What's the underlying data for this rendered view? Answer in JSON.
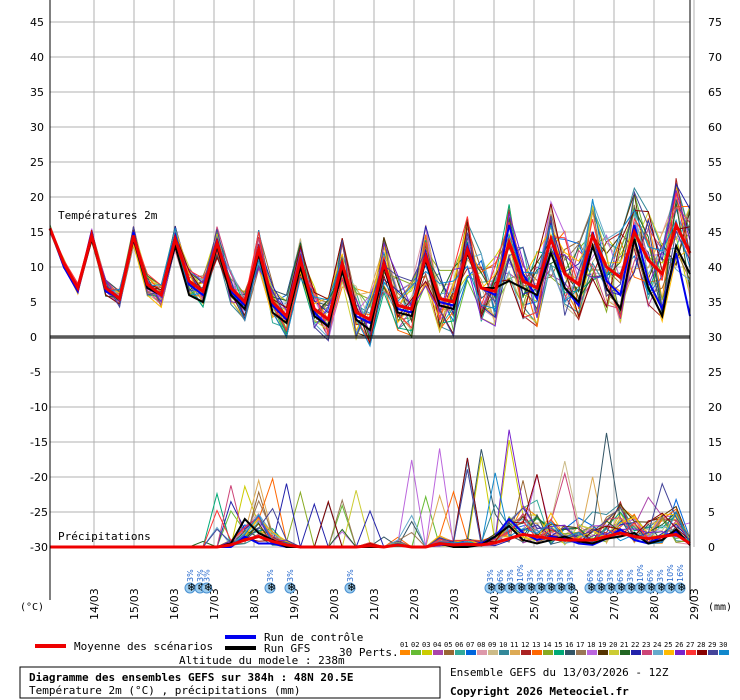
{
  "chart_data": {
    "type": "line",
    "left_unit": "(°C)",
    "right_unit": "(mm)",
    "temp_label": "Températures 2m",
    "precip_label": "Précipitations",
    "ylim_temp": [
      -30,
      45
    ],
    "ylim_precip": [
      0,
      75
    ],
    "left_ticks": [
      "45",
      "40",
      "35",
      "30",
      "25",
      "20",
      "15",
      "10",
      "5",
      "0",
      "-5",
      "-10",
      "-15",
      "-20",
      "-25",
      "-30"
    ],
    "right_ticks": [
      "75",
      "70",
      "65",
      "60",
      "55",
      "50",
      "45",
      "40",
      "35",
      "30",
      "25",
      "20",
      "15",
      "10",
      "5",
      "0"
    ],
    "x_labels": [
      "14/03",
      "15/03",
      "16/03",
      "17/03",
      "18/03",
      "19/03",
      "20/03",
      "21/03",
      "22/03",
      "23/03",
      "24/03",
      "25/03",
      "26/03",
      "27/03",
      "28/03",
      "29/03"
    ],
    "snow_markers": [
      {
        "t": 42,
        "label": "3%"
      },
      {
        "t": 45,
        "label": "3%"
      },
      {
        "t": 47,
        "label": "3%"
      },
      {
        "t": 66,
        "label": "3%"
      },
      {
        "t": 72,
        "label": "3%"
      },
      {
        "t": 90,
        "label": "3%"
      },
      {
        "t": 132,
        "label": "3%"
      },
      {
        "t": 135,
        "label": "6%"
      },
      {
        "t": 138,
        "label": "3%"
      },
      {
        "t": 141,
        "label": "10%"
      },
      {
        "t": 144,
        "label": "3%"
      },
      {
        "t": 147,
        "label": "3%"
      },
      {
        "t": 150,
        "label": "3%"
      },
      {
        "t": 153,
        "label": "3%"
      },
      {
        "t": 156,
        "label": "3%"
      },
      {
        "t": 162,
        "label": "6%"
      },
      {
        "t": 165,
        "label": "6%"
      },
      {
        "t": 168,
        "label": "3%"
      },
      {
        "t": 171,
        "label": "6%"
      },
      {
        "t": 174,
        "label": "3%"
      },
      {
        "t": 177,
        "label": "10%"
      },
      {
        "t": 180,
        "label": "6%"
      },
      {
        "t": 183,
        "label": "3%"
      },
      {
        "t": 186,
        "label": "10%"
      },
      {
        "t": 189,
        "label": "16%"
      }
    ],
    "series": [
      {
        "name": "Moyenne des scénarios",
        "color": "#ee0000",
        "temp": [
          15.5,
          10.5,
          7,
          14.5,
          7,
          5.5,
          14.5,
          7.5,
          6,
          14,
          8,
          6.5,
          13.5,
          7,
          5,
          12.5,
          5,
          3,
          11,
          4,
          2.5,
          10.5,
          3.5,
          2.5,
          10.5,
          4.5,
          4,
          11.5,
          5.5,
          5,
          12.5,
          7,
          6.5,
          13.5,
          8,
          7,
          14,
          9,
          7.5,
          14.5,
          10,
          8.5,
          15,
          11,
          9,
          16,
          12
        ],
        "precip": [
          0,
          0,
          0,
          0,
          0,
          0,
          0,
          0,
          0,
          0,
          0,
          0,
          0,
          0.3,
          1,
          1.5,
          0.8,
          0.3,
          0,
          0,
          0,
          0,
          0,
          0.2,
          0,
          0.3,
          0,
          0,
          0.5,
          0.3,
          0.4,
          0.3,
          0.6,
          1.2,
          1.8,
          1.5,
          1.2,
          1,
          1,
          1,
          1.5,
          2,
          1.5,
          1.2,
          1.5,
          1.8,
          0.5
        ]
      },
      {
        "name": "Run de contrôle",
        "color": "#0000ee",
        "temp": [
          15.5,
          10,
          6.5,
          15,
          6.5,
          5.5,
          15,
          7,
          6,
          14.5,
          7.5,
          6,
          14,
          6.5,
          4.5,
          12.5,
          4.5,
          2.5,
          11,
          3.5,
          1.5,
          10.5,
          3,
          2,
          11,
          4,
          3.5,
          12,
          5,
          4.5,
          13,
          7,
          6,
          16,
          9,
          5.5,
          14,
          7,
          4.5,
          15,
          8,
          6,
          16,
          8,
          4,
          12,
          3
        ],
        "precip": [
          0,
          0,
          0,
          0,
          0,
          0,
          0,
          0,
          0,
          0,
          0,
          0,
          0,
          0,
          1.5,
          0.5,
          0.5,
          0,
          0,
          0,
          0,
          0,
          0,
          0,
          0,
          0.3,
          0,
          0,
          0.5,
          0.2,
          0.3,
          0.5,
          1.5,
          4,
          2,
          1,
          1.5,
          1.2,
          0.5,
          0.3,
          1.2,
          2.5,
          1,
          0.5,
          1.5,
          2.2,
          0.3
        ]
      },
      {
        "name": "Run GFS",
        "color": "#000000",
        "temp": [
          15.5,
          10.5,
          7,
          14,
          7,
          5.5,
          14,
          7,
          6,
          13,
          6,
          5,
          13,
          6,
          4,
          12,
          3.5,
          2,
          10,
          3,
          1.5,
          9.5,
          2.5,
          1,
          10,
          3.5,
          3,
          11,
          4.5,
          4,
          12,
          7,
          7,
          8,
          7,
          6,
          12,
          7,
          5,
          13,
          7,
          4,
          14,
          7,
          3,
          13,
          9
        ],
        "precip": [
          0,
          0,
          0,
          0,
          0,
          0,
          0,
          0,
          0,
          0,
          0,
          0,
          0,
          0.5,
          4,
          2,
          1,
          0,
          0,
          0,
          0,
          0,
          0,
          0,
          0,
          0.3,
          0,
          0,
          0.5,
          0,
          0,
          0.3,
          1.5,
          3,
          1,
          0.5,
          1,
          1.5,
          0.8,
          0.5,
          1.2,
          1.5,
          2,
          0.5,
          1,
          2.5,
          0.3
        ]
      }
    ],
    "member_colors": [
      "#ff8800",
      "#66bb33",
      "#cccc00",
      "#aa44aa",
      "#996633",
      "#33aa99",
      "#0066dd",
      "#dd99aa",
      "#ccbb88",
      "#338899",
      "#ddaa55",
      "#aa2222",
      "#ff6600",
      "#88aa22",
      "#00aa77",
      "#335566",
      "#997755",
      "#bb66dd",
      "#553300",
      "#cccc33",
      "#226622",
      "#2222aa",
      "#cc4477",
      "#66aacc",
      "#ffbb00",
      "#7722cc",
      "#ff3333",
      "#880000",
      "#444499",
      "#1188cc"
    ],
    "member_codes": [
      "01",
      "02",
      "03",
      "04",
      "05",
      "06",
      "07",
      "08",
      "09",
      "10",
      "11",
      "12",
      "13",
      "14",
      "15",
      "16",
      "17",
      "18",
      "19",
      "20",
      "21",
      "22",
      "23",
      "24",
      "25",
      "26",
      "27",
      "28",
      "29",
      "30"
    ],
    "legend_perts": "30 Perts.",
    "altitude": "Altitude du modele : 238m",
    "title_main": "Diagramme des ensembles GEFS sur 384h : 48N 20.5E",
    "title_sub": "Température 2m (°C) , précipitations (mm)",
    "run_info": "Ensemble GEFS du 13/03/2026 - 12Z",
    "copyright": "Copyright 2026 Meteociel.fr"
  }
}
